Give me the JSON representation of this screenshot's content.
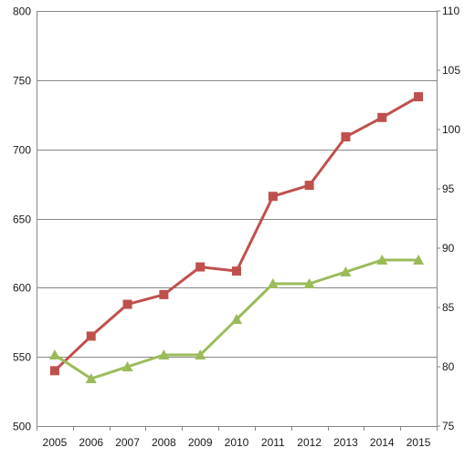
{
  "chart_data": {
    "type": "line",
    "x": [
      "2005",
      "2006",
      "2007",
      "2008",
      "2009",
      "2010",
      "2011",
      "2012",
      "2013",
      "2014",
      "2015"
    ],
    "y_left": {
      "ylim": [
        500,
        800
      ],
      "ticks": [
        500,
        550,
        600,
        650,
        700,
        750,
        800
      ]
    },
    "y_right": {
      "ylim": [
        75,
        110
      ],
      "ticks": [
        75,
        80,
        85,
        90,
        95,
        100,
        105,
        110
      ]
    },
    "grid": true,
    "legend": "none",
    "series": [
      {
        "axis": "left",
        "marker": "square",
        "color": "#c0504d",
        "values": [
          540,
          565,
          588,
          595,
          615,
          612,
          666,
          674,
          709,
          723,
          738
        ]
      },
      {
        "axis": "right",
        "marker": "triangle",
        "color": "#9bbb59",
        "values": [
          81,
          79,
          80,
          81,
          81,
          84,
          87,
          87,
          88,
          89,
          89
        ]
      }
    ]
  }
}
